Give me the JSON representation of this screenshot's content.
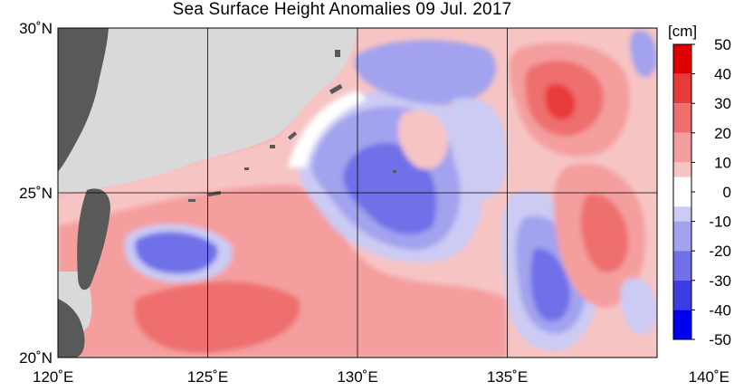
{
  "title": "Sea Surface Height Anomalies  09 Jul. 2017",
  "map": {
    "lon_range": [
      120,
      140
    ],
    "lat_range": [
      20,
      30
    ],
    "lon_ticks": [
      {
        "value": 120,
        "label": "120˚E"
      },
      {
        "value": 125,
        "label": "125˚E"
      },
      {
        "value": 130,
        "label": "130˚E"
      },
      {
        "value": 135,
        "label": "135˚E"
      },
      {
        "value": 140,
        "label": "140˚E"
      }
    ],
    "lat_ticks": [
      {
        "value": 20,
        "label": "20˚N"
      },
      {
        "value": 25,
        "label": "25˚N"
      },
      {
        "value": 30,
        "label": "30˚N"
      }
    ],
    "colors": {
      "land": "#595959",
      "no_data": "#d9d9d9",
      "grid": "#000000"
    }
  },
  "colorbar": {
    "unit": "[cm]",
    "range": [
      -50,
      50
    ],
    "tick_labels": [
      "50",
      "40",
      "30",
      "20",
      "10",
      "0",
      "-10",
      "-20",
      "-30",
      "-40",
      "-50"
    ],
    "bins": [
      {
        "from": 40,
        "to": 50,
        "color": "#e00000"
      },
      {
        "from": 30,
        "to": 40,
        "color": "#e83a3a"
      },
      {
        "from": 20,
        "to": 30,
        "color": "#ef6e6e"
      },
      {
        "from": 10,
        "to": 20,
        "color": "#f49e9e"
      },
      {
        "from": 5,
        "to": 10,
        "color": "#f7c4c4"
      },
      {
        "from": -5,
        "to": 5,
        "color": "#ffffff"
      },
      {
        "from": -10,
        "to": -5,
        "color": "#cbcbf4"
      },
      {
        "from": -20,
        "to": -10,
        "color": "#a2a2ee"
      },
      {
        "from": -30,
        "to": -20,
        "color": "#7070e8"
      },
      {
        "from": -40,
        "to": -30,
        "color": "#3d3de6"
      },
      {
        "from": -50,
        "to": -40,
        "color": "#0000f0"
      }
    ]
  }
}
